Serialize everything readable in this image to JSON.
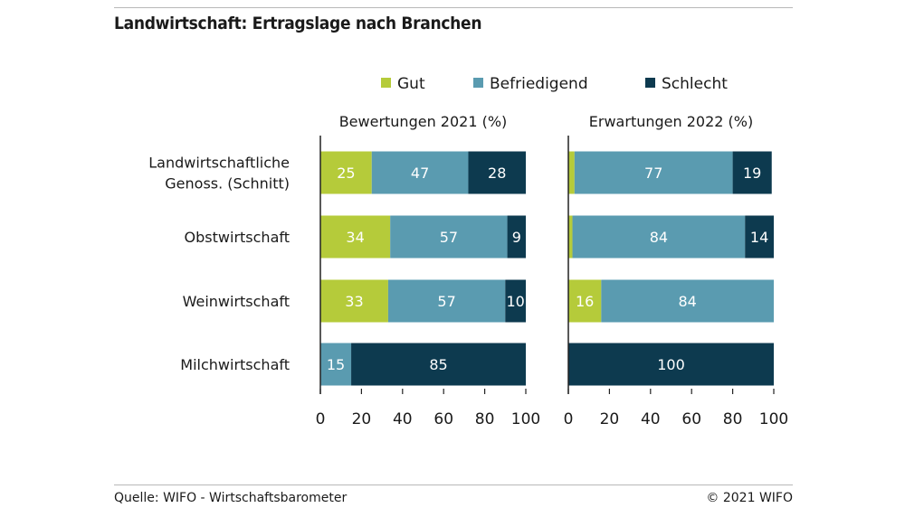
{
  "title": "Landwirtschaft: Ertragslage nach Branchen",
  "footer": {
    "source": "Quelle: WIFO - Wirtschaftsbarometer",
    "copyright": "© 2021 WIFO"
  },
  "chart_data": {
    "type": "bar",
    "orientation": "horizontal",
    "stacked": true,
    "legend_position": "top",
    "colors": {
      "Gut": "#b5cb3a",
      "Befriedigend": "#5a9bb0",
      "Schlecht": "#0d3a4f"
    },
    "categories": [
      [
        "Landwirtschaftliche",
        "Genoss. (Schnitt)"
      ],
      [
        "Obstwirtschaft"
      ],
      [
        "Weinwirtschaft"
      ],
      [
        "Milchwirtschaft"
      ]
    ],
    "series_names": [
      "Gut",
      "Befriedigend",
      "Schlecht"
    ],
    "xlim": [
      0,
      100
    ],
    "xticks": [
      "0",
      "20",
      "40",
      "60",
      "80",
      "100"
    ],
    "panels": [
      {
        "title": "Bewertungen 2021 (%)",
        "values": [
          [
            25,
            47,
            28
          ],
          [
            34,
            57,
            9
          ],
          [
            33,
            57,
            10
          ],
          [
            0,
            15,
            85
          ]
        ],
        "labels": [
          [
            "25",
            "47",
            "28"
          ],
          [
            "34",
            "57",
            "9"
          ],
          [
            "33",
            "57",
            "10"
          ],
          [
            "",
            "15",
            "85"
          ]
        ]
      },
      {
        "title": "Erwartungen 2022 (%)",
        "values": [
          [
            3,
            77,
            19
          ],
          [
            2,
            84,
            14
          ],
          [
            16,
            84,
            0
          ],
          [
            0,
            0,
            100
          ]
        ],
        "labels": [
          [
            "",
            "77",
            "19"
          ],
          [
            "",
            "84",
            "14"
          ],
          [
            "16",
            "84",
            ""
          ],
          [
            "",
            "",
            "100"
          ]
        ]
      }
    ]
  }
}
